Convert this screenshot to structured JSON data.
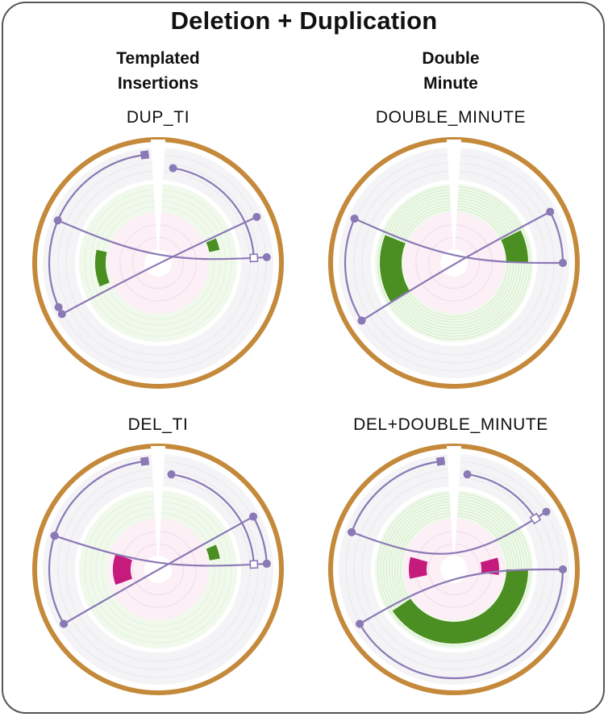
{
  "title": "Deletion + Duplication",
  "columns": [
    {
      "lines": [
        "Templated",
        "Insertions"
      ]
    },
    {
      "lines": [
        "Double",
        "Minute"
      ]
    }
  ],
  "colors": {
    "outer_ring": "#C4893A",
    "link": "#8A79B5",
    "gain": "#4B8E21",
    "loss": "#C51B7D",
    "track_bg": "#F4F4F6",
    "cn_bg": "#F0F9EC",
    "cn_grid": "#D2EDC7",
    "maf_bg": "#FCEFF6",
    "maf_grid": "#F3DBE8"
  },
  "panels": [
    {
      "label": "DUP_TI",
      "cn_rings": 0,
      "segments": [
        {
          "type": "gain",
          "start": 67,
          "end": 78
        },
        {
          "type": "gain",
          "start": 248,
          "end": 282
        }
      ],
      "links": [
        {
          "a": 65,
          "b": 242
        },
        {
          "a": 293,
          "b": 87
        }
      ],
      "arcs": [
        {
          "from": 246,
          "to": 353,
          "track": "outer",
          "end_marker": "filled-square"
        },
        {
          "from": 9,
          "to": 87,
          "track": "inner",
          "end_marker": "open-square"
        }
      ]
    },
    {
      "label": "DOUBLE_MINUTE",
      "cn_rings": 9,
      "segments": [
        {
          "type": "gain",
          "start": 64,
          "end": 90
        },
        {
          "type": "gain",
          "start": 238,
          "end": 292
        }
      ],
      "links": [
        {
          "a": 294,
          "b": 90
        },
        {
          "a": 62,
          "b": 238
        }
      ],
      "arcs": [
        {
          "from": 238,
          "to": 294,
          "track": "outer",
          "end_marker": "none"
        },
        {
          "from": 62,
          "to": 90,
          "track": "outer",
          "end_marker": "none"
        }
      ]
    },
    {
      "label": "DEL_TI",
      "cn_rings": 0,
      "segments": [
        {
          "type": "loss",
          "start": 250,
          "end": 290
        },
        {
          "type": "gain",
          "start": 67,
          "end": 80
        }
      ],
      "links": [
        {
          "a": 288,
          "b": 87
        },
        {
          "a": 61,
          "b": 240
        }
      ],
      "arcs": [
        {
          "from": 288,
          "to": 353,
          "track": "outer",
          "end_marker": "filled-square"
        },
        {
          "from": 8,
          "to": 87,
          "track": "inner",
          "end_marker": "open-square"
        },
        {
          "from": 240,
          "to": 288,
          "track": "outer",
          "end_marker": "none"
        },
        {
          "from": 61,
          "to": 87,
          "track": "outer",
          "end_marker": "none"
        }
      ]
    },
    {
      "label": "DEL+DOUBLE_MINUTE",
      "cn_rings": 9,
      "segments": [
        {
          "type": "loss",
          "start": 258,
          "end": 286
        },
        {
          "type": "loss",
          "start": 75,
          "end": 97
        },
        {
          "type": "gain",
          "start": 90,
          "end": 236
        }
      ],
      "links": [
        {
          "a": 290,
          "b": 58
        },
        {
          "a": 90,
          "b": 240
        }
      ],
      "arcs": [
        {
          "from": 290,
          "to": 353,
          "track": "outer",
          "end_marker": "filled-square"
        },
        {
          "from": 8,
          "to": 58,
          "track": "inner",
          "end_marker": "open-square"
        },
        {
          "from": 90,
          "to": 240,
          "track": "outer",
          "end_marker": "none"
        }
      ]
    }
  ]
}
